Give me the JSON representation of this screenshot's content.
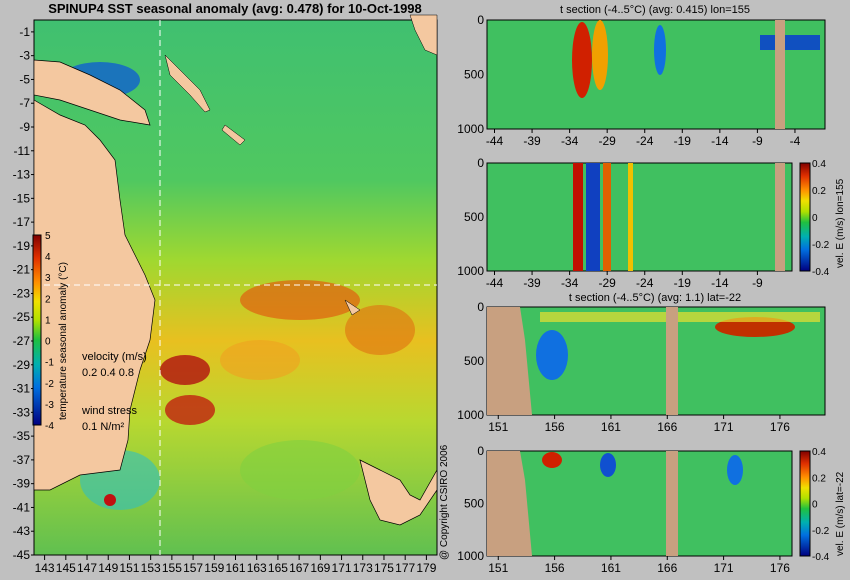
{
  "chart_data": [
    {
      "type": "heatmap",
      "title": "SPINUP4 SST seasonal anomaly (avg: 0.478) for 10-Oct-1998",
      "x_ticks": [
        "143",
        "145",
        "147",
        "149",
        "151",
        "153",
        "155",
        "157",
        "159",
        "161",
        "163",
        "165",
        "167",
        "169",
        "171",
        "173",
        "175",
        "177",
        "179"
      ],
      "y_ticks": [
        "-1",
        "-3",
        "-5",
        "-7",
        "-9",
        "-11",
        "-13",
        "-15",
        "-17",
        "-19",
        "-21",
        "-23",
        "-25",
        "-27",
        "-29",
        "-31",
        "-33",
        "-35",
        "-37",
        "-39",
        "-41",
        "-43",
        "-45"
      ],
      "xlim": [
        142,
        180
      ],
      "ylim": [
        -45,
        0
      ],
      "colorbar": {
        "label": "temperature seasonal anomaly (°C)",
        "ticks": [
          "5",
          "4",
          "3",
          "2",
          "1",
          "0",
          "-1",
          "-2",
          "-3",
          "-4"
        ],
        "range": [
          -4,
          5
        ]
      },
      "velocity_legend": {
        "label": "velocity (m/s)",
        "values": "0.2 0.4 0.8"
      },
      "wind_legend": {
        "label": "wind stress",
        "value": "0.1 N/m²"
      },
      "section_lines": {
        "lon": 155,
        "lat": -22
      }
    },
    {
      "type": "heatmap",
      "title": "t section (-4..5°C) (avg: 0.415) lon=155",
      "x_ticks": [
        "-44",
        "-39",
        "-34",
        "-29",
        "-24",
        "-19",
        "-14",
        "-9",
        "-4"
      ],
      "y_ticks": [
        "0",
        "500",
        "1000"
      ],
      "xlim": [
        -45,
        0
      ],
      "ylim": [
        1000,
        0
      ]
    },
    {
      "type": "heatmap",
      "title": "",
      "x_ticks": [
        "-44",
        "-39",
        "-34",
        "-29",
        "-24",
        "-19",
        "-14",
        "-9",
        "-4"
      ],
      "y_ticks": [
        "0",
        "500",
        "1000"
      ],
      "xlim": [
        -45,
        0
      ],
      "ylim": [
        1000,
        0
      ],
      "colorbar": {
        "label": "vel. E (m/s) lon=155",
        "ticks": [
          "0.4",
          "0.2",
          "0",
          "-0.2",
          "-0.4"
        ],
        "range": [
          -0.4,
          0.4
        ]
      }
    },
    {
      "type": "heatmap",
      "title": "t section (-4..5°C) (avg: 1.1) lat=-22",
      "x_ticks": [
        "151",
        "156",
        "161",
        "166",
        "171",
        "176"
      ],
      "y_ticks": [
        "0",
        "500",
        "1000"
      ],
      "xlim": [
        150,
        180
      ],
      "ylim": [
        1000,
        0
      ]
    },
    {
      "type": "heatmap",
      "title": "",
      "x_ticks": [
        "151",
        "156",
        "161",
        "166",
        "171",
        "176"
      ],
      "y_ticks": [
        "0",
        "500",
        "1000"
      ],
      "xlim": [
        150,
        180
      ],
      "ylim": [
        1000,
        0
      ],
      "colorbar": {
        "label": "vel. E (m/s) lat=-22",
        "ticks": [
          "0.4",
          "0.2",
          "0",
          "-0.2",
          "-0.4"
        ],
        "range": [
          -0.4,
          0.4
        ]
      }
    }
  ],
  "copyright": "@ Copyright CSIRO 2006"
}
